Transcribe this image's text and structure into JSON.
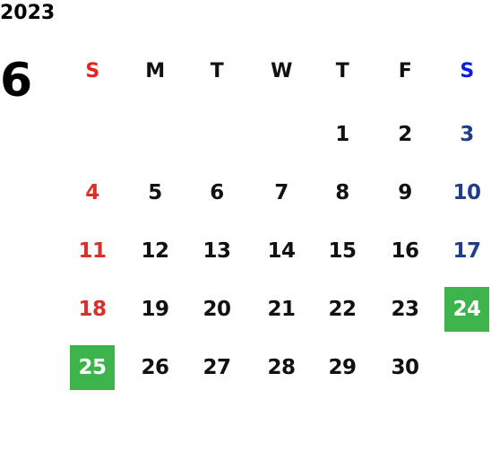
{
  "year": "2023",
  "month": "6",
  "weekdays": [
    "S",
    "M",
    "T",
    "W",
    "T",
    "F",
    "S"
  ],
  "weeks": [
    [
      null,
      null,
      null,
      null,
      "1",
      "2",
      "3"
    ],
    [
      "4",
      "5",
      "6",
      "7",
      "8",
      "9",
      "10"
    ],
    [
      "11",
      "12",
      "13",
      "14",
      "15",
      "16",
      "17"
    ],
    [
      "18",
      "19",
      "20",
      "21",
      "22",
      "23",
      "24"
    ],
    [
      "25",
      "26",
      "27",
      "28",
      "29",
      "30",
      null
    ]
  ],
  "highlighted_days": [
    "24",
    "25"
  ]
}
